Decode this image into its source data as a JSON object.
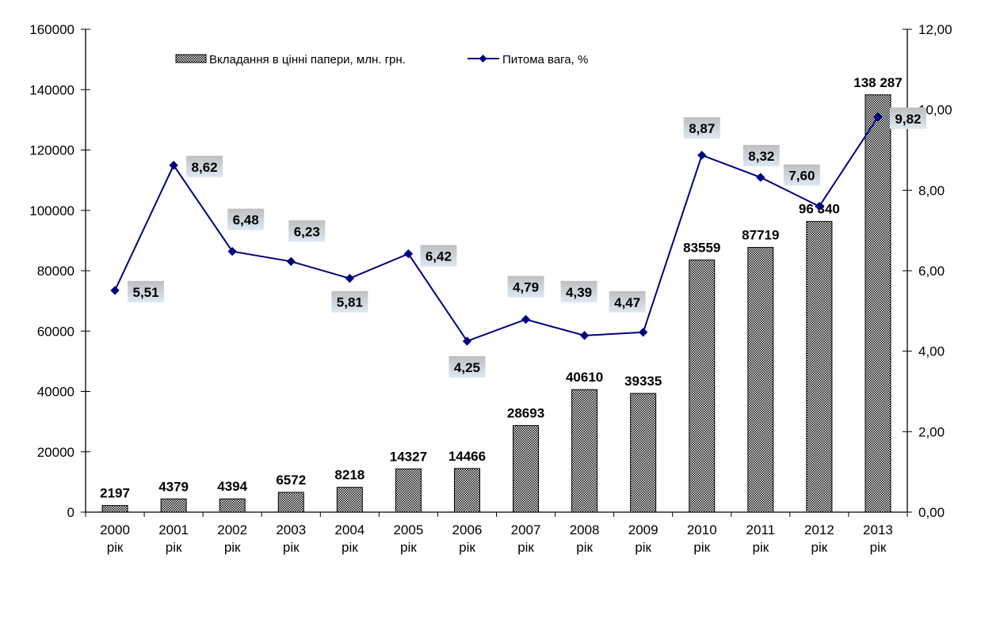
{
  "chart_data": {
    "type": "bar+line",
    "title": "",
    "categories": [
      [
        "2000",
        "рік"
      ],
      [
        "2001",
        "рік"
      ],
      [
        "2002",
        "рік"
      ],
      [
        "2003",
        "рік"
      ],
      [
        "2004",
        "рік"
      ],
      [
        "2005",
        "рік"
      ],
      [
        "2006",
        "рік"
      ],
      [
        "2007",
        "рік"
      ],
      [
        "2008",
        "рік"
      ],
      [
        "2009",
        "рік"
      ],
      [
        "2010",
        "рік"
      ],
      [
        "2011",
        "рік"
      ],
      [
        "2012",
        "рік"
      ],
      [
        "2013",
        "рік"
      ]
    ],
    "series": [
      {
        "name": "Вкладання в цінні папери, млн. грн.",
        "type": "bar",
        "axis": "left",
        "values": [
          2197,
          4379,
          4394,
          6572,
          8218,
          14327,
          14466,
          28693,
          40610,
          39335,
          83559,
          87719,
          96340,
          138287
        ],
        "labels": [
          "2197",
          "4379",
          "4394",
          "6572",
          "8218",
          "14327",
          "14466",
          "28693",
          "40610",
          "39335",
          "83559",
          "87719",
          "96 340",
          "138 287"
        ],
        "fill": "crosshatch"
      },
      {
        "name": "Питома вага, %",
        "type": "line",
        "axis": "right",
        "color": "#000080",
        "values": [
          5.51,
          8.62,
          6.48,
          6.23,
          5.81,
          6.42,
          4.25,
          4.79,
          4.39,
          4.47,
          8.87,
          8.32,
          7.6,
          9.82
        ],
        "labels": [
          "5,51",
          "8,62",
          "6,48",
          "6,23",
          "5,81",
          "6,42",
          "4,25",
          "4,79",
          "4,39",
          "4,47",
          "8,87",
          "8,32",
          "7,60",
          "9,82"
        ]
      }
    ],
    "left_axis": {
      "range": [
        0,
        160000
      ],
      "ticks": [
        "0",
        "20000",
        "40000",
        "60000",
        "80000",
        "100000",
        "120000",
        "140000",
        "160000"
      ]
    },
    "right_axis": {
      "range": [
        0,
        12
      ],
      "ticks": [
        "0,00",
        "2,00",
        "4,00",
        "6,00",
        "8,00",
        "10,00",
        "12,00"
      ]
    },
    "grid": false,
    "legend_position": "top"
  }
}
